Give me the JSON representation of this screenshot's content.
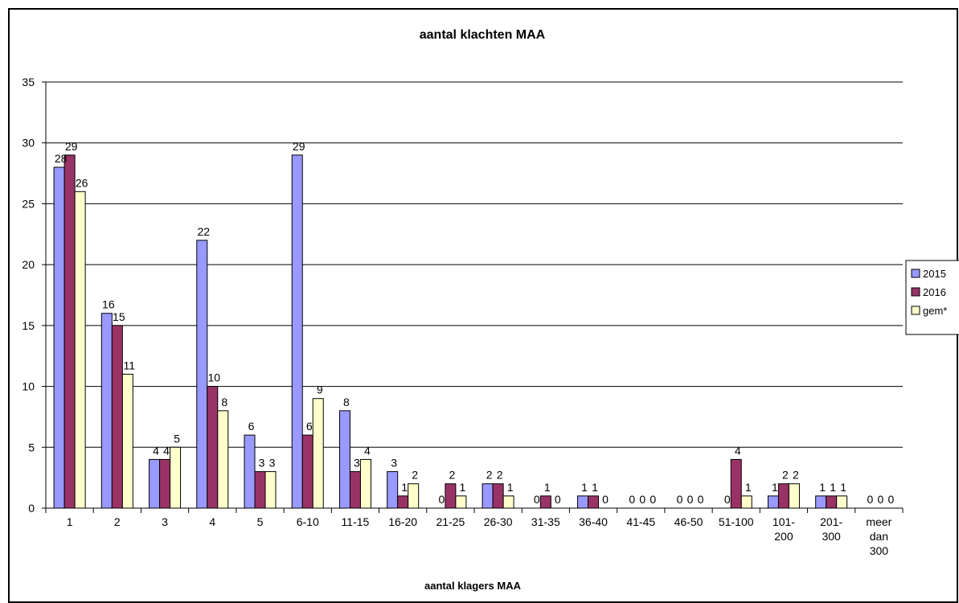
{
  "chart_data": {
    "type": "bar",
    "title": "aantal klachten MAA",
    "xlabel": "aantal klagers MAA",
    "ylabel": "",
    "ylim": [
      0,
      35
    ],
    "yticks": [
      "0",
      "5",
      "10",
      "15",
      "20",
      "25",
      "30",
      "35"
    ],
    "categories": [
      "1",
      "2",
      "3",
      "4",
      "5",
      "6-10",
      "11-15",
      "16-20",
      "21-25",
      "26-30",
      "31-35",
      "36-40",
      "41-45",
      "46-50",
      "51-100",
      "101-200",
      "201-300",
      "meer dan 300"
    ],
    "category_lines": [
      [
        "1"
      ],
      [
        "2"
      ],
      [
        "3"
      ],
      [
        "4"
      ],
      [
        "5"
      ],
      [
        "6-10"
      ],
      [
        "11-15"
      ],
      [
        "16-20"
      ],
      [
        "21-25"
      ],
      [
        "26-30"
      ],
      [
        "31-35"
      ],
      [
        "36-40"
      ],
      [
        "41-45"
      ],
      [
        "46-50"
      ],
      [
        "51-100"
      ],
      [
        "101-",
        "200"
      ],
      [
        "201-",
        "300"
      ],
      [
        "meer",
        "dan",
        "300"
      ]
    ],
    "series": [
      {
        "name": "2015",
        "color": "#9999ff",
        "values": [
          28,
          16,
          4,
          22,
          6,
          29,
          8,
          3,
          0,
          2,
          0,
          1,
          0,
          0,
          0,
          1,
          1,
          0
        ]
      },
      {
        "name": "2016",
        "color": "#993366",
        "values": [
          29,
          15,
          4,
          10,
          3,
          6,
          3,
          1,
          2,
          2,
          1,
          1,
          0,
          0,
          4,
          2,
          1,
          0
        ]
      },
      {
        "name": "gem*",
        "color": "#ffffcc",
        "values": [
          26,
          11,
          5,
          8,
          3,
          9,
          4,
          2,
          1,
          1,
          0,
          0,
          0,
          0,
          1,
          2,
          1,
          0
        ]
      }
    ],
    "grid": true,
    "legend_position": "right"
  }
}
